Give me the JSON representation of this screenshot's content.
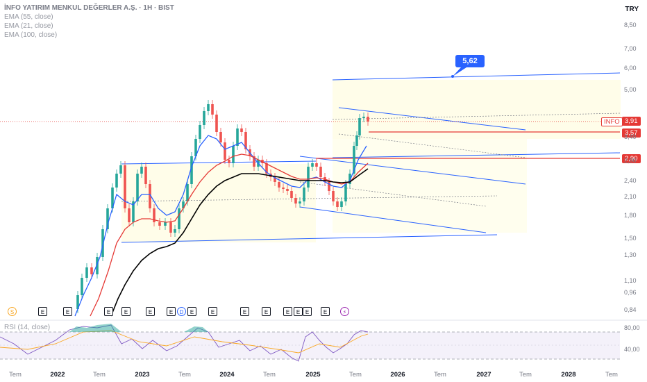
{
  "header": {
    "title": "İNFO YATIRIM MENKUL DEĞERLER A.Ş. · 1H · BIST",
    "indicators": [
      "EMA (55, close)",
      "EMA (21, close)",
      "EMA (100, close)"
    ],
    "currency": "TRY",
    "rsi_label": "RSI (14, close)"
  },
  "tags": {
    "symbol": "INFO",
    "last": "3,91",
    "level1": "3,57",
    "level2": "2,90",
    "target": "5,62"
  },
  "price_axis": [
    "8,50",
    "7,00",
    "6,00",
    "5,00",
    "3,40",
    "2,80",
    "2,40",
    "2,10",
    "1,80",
    "1,50",
    "1,30",
    "1,10",
    "0,96",
    "0,84"
  ],
  "rsi_axis": [
    "80,00",
    "40,00"
  ],
  "time_axis": [
    "Tem",
    "2022",
    "Tem",
    "2023",
    "Tem",
    "2024",
    "Tem",
    "2025",
    "Tem",
    "2026",
    "Tem",
    "2027",
    "Tem",
    "2028",
    "Tem"
  ],
  "events": [
    {
      "label": "S",
      "kind": "circle"
    },
    {
      "label": "E",
      "kind": "box"
    },
    {
      "label": "E",
      "kind": "box"
    },
    {
      "label": "E",
      "kind": "box"
    },
    {
      "label": "E",
      "kind": "box"
    },
    {
      "label": "E",
      "kind": "box"
    },
    {
      "label": "E",
      "kind": "box"
    },
    {
      "label": "D",
      "kind": "circle"
    },
    {
      "label": "E",
      "kind": "box"
    },
    {
      "label": "E",
      "kind": "box"
    },
    {
      "label": "E",
      "kind": "box"
    },
    {
      "label": "E",
      "kind": "box"
    },
    {
      "label": "E",
      "kind": "box"
    },
    {
      "label": "E",
      "kind": "box"
    },
    {
      "label": "E",
      "kind": "box"
    },
    {
      "label": "E",
      "kind": "box"
    },
    {
      "label": "⚡",
      "kind": "circle"
    }
  ],
  "colors": {
    "up": "#26a69a",
    "down": "#ef5350",
    "ema21": "#2962ff",
    "ema55": "#e53935",
    "ema100": "#000000",
    "channel": "#2962ff",
    "level": "#e53935",
    "rsi": "#7e57c2",
    "rsi_ma": "#f9a825",
    "zone": "#fffde7"
  },
  "chart_data": {
    "type": "candlestick",
    "interval": "1H",
    "exchange": "BIST",
    "series": [
      {
        "name": "EMA (21, close)"
      },
      {
        "name": "EMA (55, close)"
      },
      {
        "name": "EMA (100, close)"
      }
    ],
    "levels": [
      3.91,
      3.57,
      2.9,
      5.62
    ],
    "price_range": [
      0.84,
      8.5
    ],
    "rsi_levels": [
      80,
      40
    ]
  }
}
